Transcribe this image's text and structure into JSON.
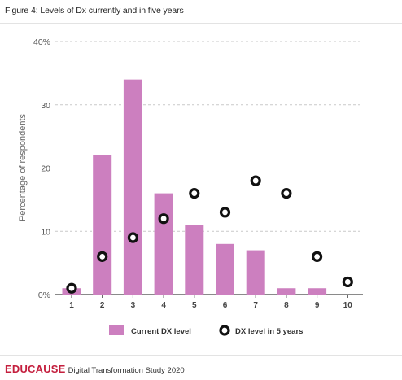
{
  "figure_title": "Figure 4: Levels of Dx currently and in five years",
  "footer": {
    "brand": "EDUCAUSE",
    "study": "Digital Transformation Study 2020"
  },
  "colors": {
    "bar": "#cc7fbf",
    "marker_stroke": "#111111",
    "grid": "#c9c9c9",
    "brand": "#c41f3e"
  },
  "chart_data": {
    "type": "bar",
    "title": "",
    "xlabel": "",
    "ylabel": "Percentage of respondents",
    "ylim": [
      0,
      40
    ],
    "yticks": [
      0,
      10,
      20,
      30,
      40
    ],
    "ytick_labels": [
      "0%",
      "10",
      "20",
      "30",
      "40%"
    ],
    "categories": [
      "1",
      "2",
      "3",
      "4",
      "5",
      "6",
      "7",
      "8",
      "9",
      "10"
    ],
    "grid": true,
    "legend_position": "bottom",
    "series": [
      {
        "name": "Current DX level",
        "kind": "bar",
        "values": [
          1,
          22,
          34,
          16,
          11,
          8,
          7,
          1,
          1,
          0
        ]
      },
      {
        "name": "DX level in 5 years",
        "kind": "marker",
        "values": [
          1,
          6,
          9,
          12,
          16,
          13,
          18,
          16,
          6,
          2
        ]
      }
    ]
  }
}
